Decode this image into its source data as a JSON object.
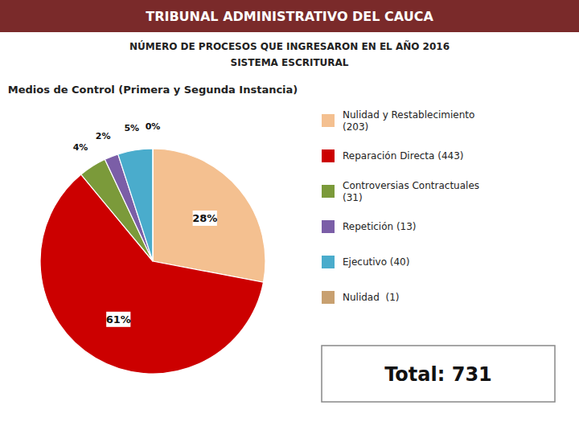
{
  "chart_data": {
    "type": "pie",
    "title": "TRIBUNAL ADMINISTRATIVO DEL CAUCA",
    "subtitle": [
      "NÚMERO DE PROCESOS QUE INGRESARON EN EL AÑO 2016",
      "SISTEMA ESCRITURAL"
    ],
    "annotations": [
      "Medios de Control (Primera y Segunda Instancia)",
      "Total: 731"
    ],
    "categories": [
      "Nulidad y Restablecimiento\n(203)",
      "Reparación Directa (443)",
      "Controversias Contractuales\n(31)",
      "Repetición (13)",
      "Ejecutivo (40)",
      "Nulidad  (1)"
    ],
    "values": [
      28,
      61,
      4,
      2,
      5,
      0
    ],
    "value_labels": [
      "28%",
      "61%",
      "4%",
      "2%",
      "5%",
      "0%"
    ],
    "colors": [
      "#F4C090",
      "#CC0000",
      "#7B9A3A",
      "#7B5EA7",
      "#4AACCC",
      "#C8A070"
    ],
    "data_labels": true,
    "legend": "right"
  }
}
